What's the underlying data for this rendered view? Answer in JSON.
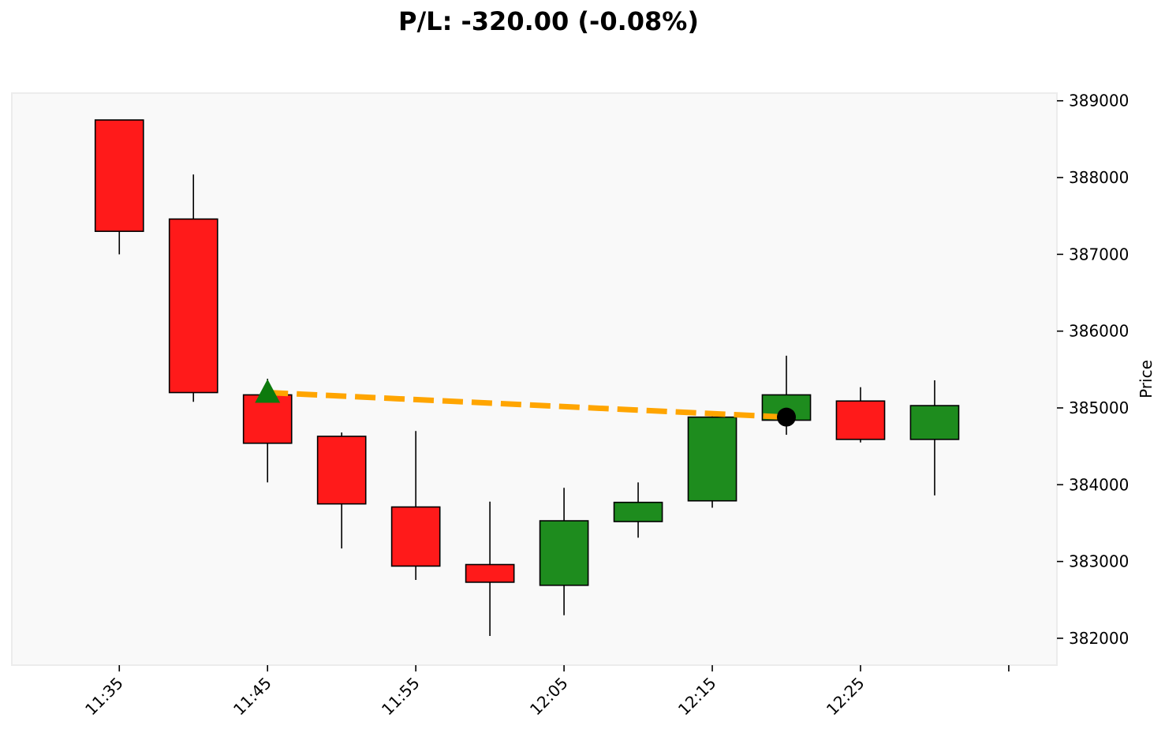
{
  "chart_data": {
    "type": "candlestick",
    "title": "P/L: -320.00 (-0.08%)",
    "xlabel": "",
    "ylabel": "Price",
    "y_axis_side": "right",
    "ylim": [
      381650,
      389100
    ],
    "y_ticks": [
      382000,
      383000,
      384000,
      385000,
      386000,
      387000,
      388000,
      389000
    ],
    "x_ticks": [
      "11:35",
      "11:45",
      "11:55",
      "12:05",
      "12:15",
      "12:25",
      ""
    ],
    "x_tick_positions": [
      0,
      2,
      4,
      6,
      8,
      10,
      12
    ],
    "xlim": [
      -1.45,
      12.65
    ],
    "grid": false,
    "colors": {
      "up": "#1e8c1e",
      "down": "#ff1a1a",
      "plot_background": "#f9f9f9",
      "trade_line": "#ffa500",
      "entry_marker": "#0d7a0d",
      "exit_marker": "#000000"
    },
    "candles": [
      {
        "time": "11:35",
        "open": 388750,
        "high": 388750,
        "low": 387000,
        "close": 387300
      },
      {
        "time": "11:40",
        "open": 387460,
        "high": 388040,
        "low": 385080,
        "close": 385200
      },
      {
        "time": "11:45",
        "open": 385170,
        "high": 385380,
        "low": 384030,
        "close": 384540
      },
      {
        "time": "11:50",
        "open": 384630,
        "high": 384680,
        "low": 383170,
        "close": 383750
      },
      {
        "time": "11:55",
        "open": 383710,
        "high": 384700,
        "low": 382760,
        "close": 382940
      },
      {
        "time": "12:00",
        "open": 382960,
        "high": 383780,
        "low": 382030,
        "close": 382730
      },
      {
        "time": "12:05",
        "open": 382690,
        "high": 383960,
        "low": 382300,
        "close": 383530
      },
      {
        "time": "12:10",
        "open": 383520,
        "high": 384030,
        "low": 383310,
        "close": 383770
      },
      {
        "time": "12:15",
        "open": 383790,
        "high": 384890,
        "low": 383700,
        "close": 384880
      },
      {
        "time": "12:20",
        "open": 384840,
        "high": 385680,
        "low": 384650,
        "close": 385170
      },
      {
        "time": "12:25",
        "open": 385090,
        "high": 385270,
        "low": 384550,
        "close": 384590
      },
      {
        "time": "12:30",
        "open": 384590,
        "high": 385360,
        "low": 383860,
        "close": 385030
      }
    ],
    "trade": {
      "entry": {
        "index": 2,
        "price": 385200,
        "marker": "triangle-up"
      },
      "exit": {
        "index": 9,
        "price": 384880,
        "marker": "circle"
      }
    }
  }
}
